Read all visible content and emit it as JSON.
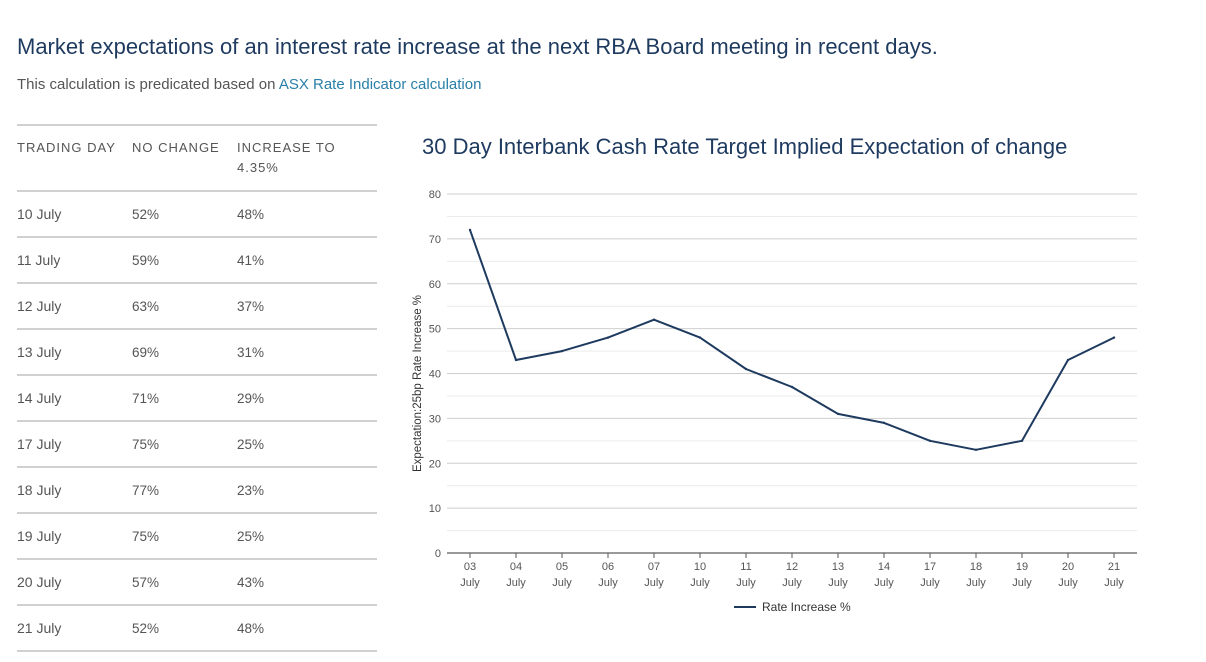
{
  "header": {
    "title": "Market expectations of an interest rate increase at the next RBA Board meeting in recent days.",
    "subtitle_prefix": "This calculation is predicated based on ",
    "subtitle_link": "ASX Rate Indicator calculation"
  },
  "table": {
    "headers": [
      "TRADING DAY",
      "NO CHANGE",
      "INCREASE TO 4.35%"
    ],
    "rows": [
      [
        "10 July",
        "52%",
        "48%"
      ],
      [
        "11 July",
        "59%",
        "41%"
      ],
      [
        "12 July",
        "63%",
        "37%"
      ],
      [
        "13 July",
        "69%",
        "31%"
      ],
      [
        "14 July",
        "71%",
        "29%"
      ],
      [
        "17 July",
        "75%",
        "25%"
      ],
      [
        "18 July",
        "77%",
        "23%"
      ],
      [
        "19 July",
        "75%",
        "25%"
      ],
      [
        "20 July",
        "57%",
        "43%"
      ],
      [
        "21 July",
        "52%",
        "48%"
      ]
    ]
  },
  "chart_data": {
    "type": "line",
    "title": "30 Day Interbank Cash Rate Target Implied Expectation of change",
    "ylabel": "Expectation:25bp Rate Increase %",
    "xlabel": "",
    "categories": [
      [
        "03",
        "July"
      ],
      [
        "04",
        "July"
      ],
      [
        "05",
        "July"
      ],
      [
        "06",
        "July"
      ],
      [
        "07",
        "July"
      ],
      [
        "10",
        "July"
      ],
      [
        "11",
        "July"
      ],
      [
        "12",
        "July"
      ],
      [
        "13",
        "July"
      ],
      [
        "14",
        "July"
      ],
      [
        "17",
        "July"
      ],
      [
        "18",
        "July"
      ],
      [
        "19",
        "July"
      ],
      [
        "20",
        "July"
      ],
      [
        "21",
        "July"
      ]
    ],
    "series": [
      {
        "name": "Rate Increase %",
        "values": [
          72,
          43,
          45,
          48,
          52,
          48,
          41,
          37,
          31,
          29,
          25,
          23,
          25,
          43,
          48
        ],
        "color": "#1e3a5f"
      }
    ],
    "ylim": [
      0,
      80
    ],
    "yticks": [
      0,
      10,
      20,
      30,
      40,
      50,
      60,
      70,
      80
    ],
    "grid": true,
    "legend": "bottom-center"
  },
  "colors": {
    "title": "#1e3a5f",
    "link": "#2a7fa8",
    "line": "#1e3a5f",
    "grid": "#d9d9d9"
  }
}
